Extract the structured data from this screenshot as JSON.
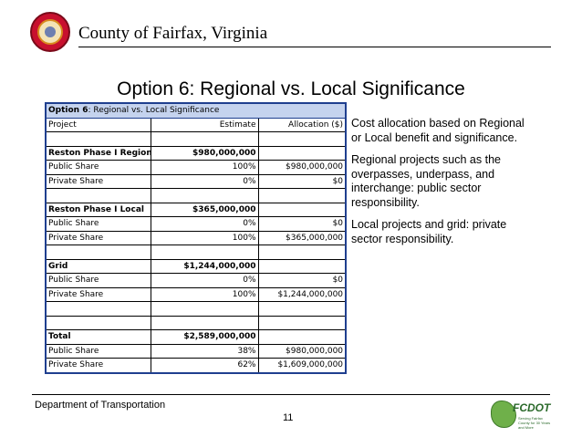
{
  "header": {
    "county_name": "County of Fairfax, Virginia"
  },
  "slide": {
    "title": "Option 6: Regional vs. Local Significance",
    "page_number": "11"
  },
  "table": {
    "caption_bold": "Option 6",
    "caption_rest": ": Regional vs. Local Significance",
    "columns": [
      "Project",
      "Estimate",
      "Allocation ($)"
    ],
    "rows": [
      {
        "cells": [
          "",
          "",
          ""
        ],
        "bold": false
      },
      {
        "cells": [
          "Reston Phase I Regional",
          "$980,000,000",
          ""
        ],
        "bold": true
      },
      {
        "cells": [
          "Public Share",
          "100%",
          "$980,000,000"
        ],
        "bold": false
      },
      {
        "cells": [
          "Private Share",
          "0%",
          "$0"
        ],
        "bold": false
      },
      {
        "cells": [
          "",
          "",
          ""
        ],
        "bold": false
      },
      {
        "cells": [
          "Reston Phase I Local",
          "$365,000,000",
          ""
        ],
        "bold": true
      },
      {
        "cells": [
          "Public Share",
          "0%",
          "$0"
        ],
        "bold": false
      },
      {
        "cells": [
          "Private Share",
          "100%",
          "$365,000,000"
        ],
        "bold": false
      },
      {
        "cells": [
          "",
          "",
          ""
        ],
        "bold": false
      },
      {
        "cells": [
          "Grid",
          "$1,244,000,000",
          ""
        ],
        "bold": true
      },
      {
        "cells": [
          "Public Share",
          "0%",
          "$0"
        ],
        "bold": false
      },
      {
        "cells": [
          "Private Share",
          "100%",
          "$1,244,000,000"
        ],
        "bold": false
      },
      {
        "cells": [
          "",
          "",
          ""
        ],
        "bold": false
      },
      {
        "cells": [
          "",
          "",
          ""
        ],
        "bold": false
      },
      {
        "cells": [
          "Total",
          "$2,589,000,000",
          ""
        ],
        "bold": true
      },
      {
        "cells": [
          "Public Share",
          "38%",
          "$980,000,000"
        ],
        "bold": false
      },
      {
        "cells": [
          "Private Share",
          "62%",
          "$1,609,000,000"
        ],
        "bold": false
      }
    ]
  },
  "bullets": [
    "Cost allocation based on Regional or Local benefit and significance.",
    "Regional projects such as the overpasses, underpass, and interchange: public sector responsibility.",
    "Local projects and grid: private sector responsibility."
  ],
  "footer": {
    "department": "Department of Transportation",
    "logo_text": "FCDOT",
    "logo_tagline": "Serving Fairfax County for 30 Years and More"
  },
  "colors": {
    "table_border": "#1f3f8f",
    "caption_fill": "#c5d3ee",
    "seal_red": "#c8102e",
    "logo_green": "#2b6a2b"
  }
}
